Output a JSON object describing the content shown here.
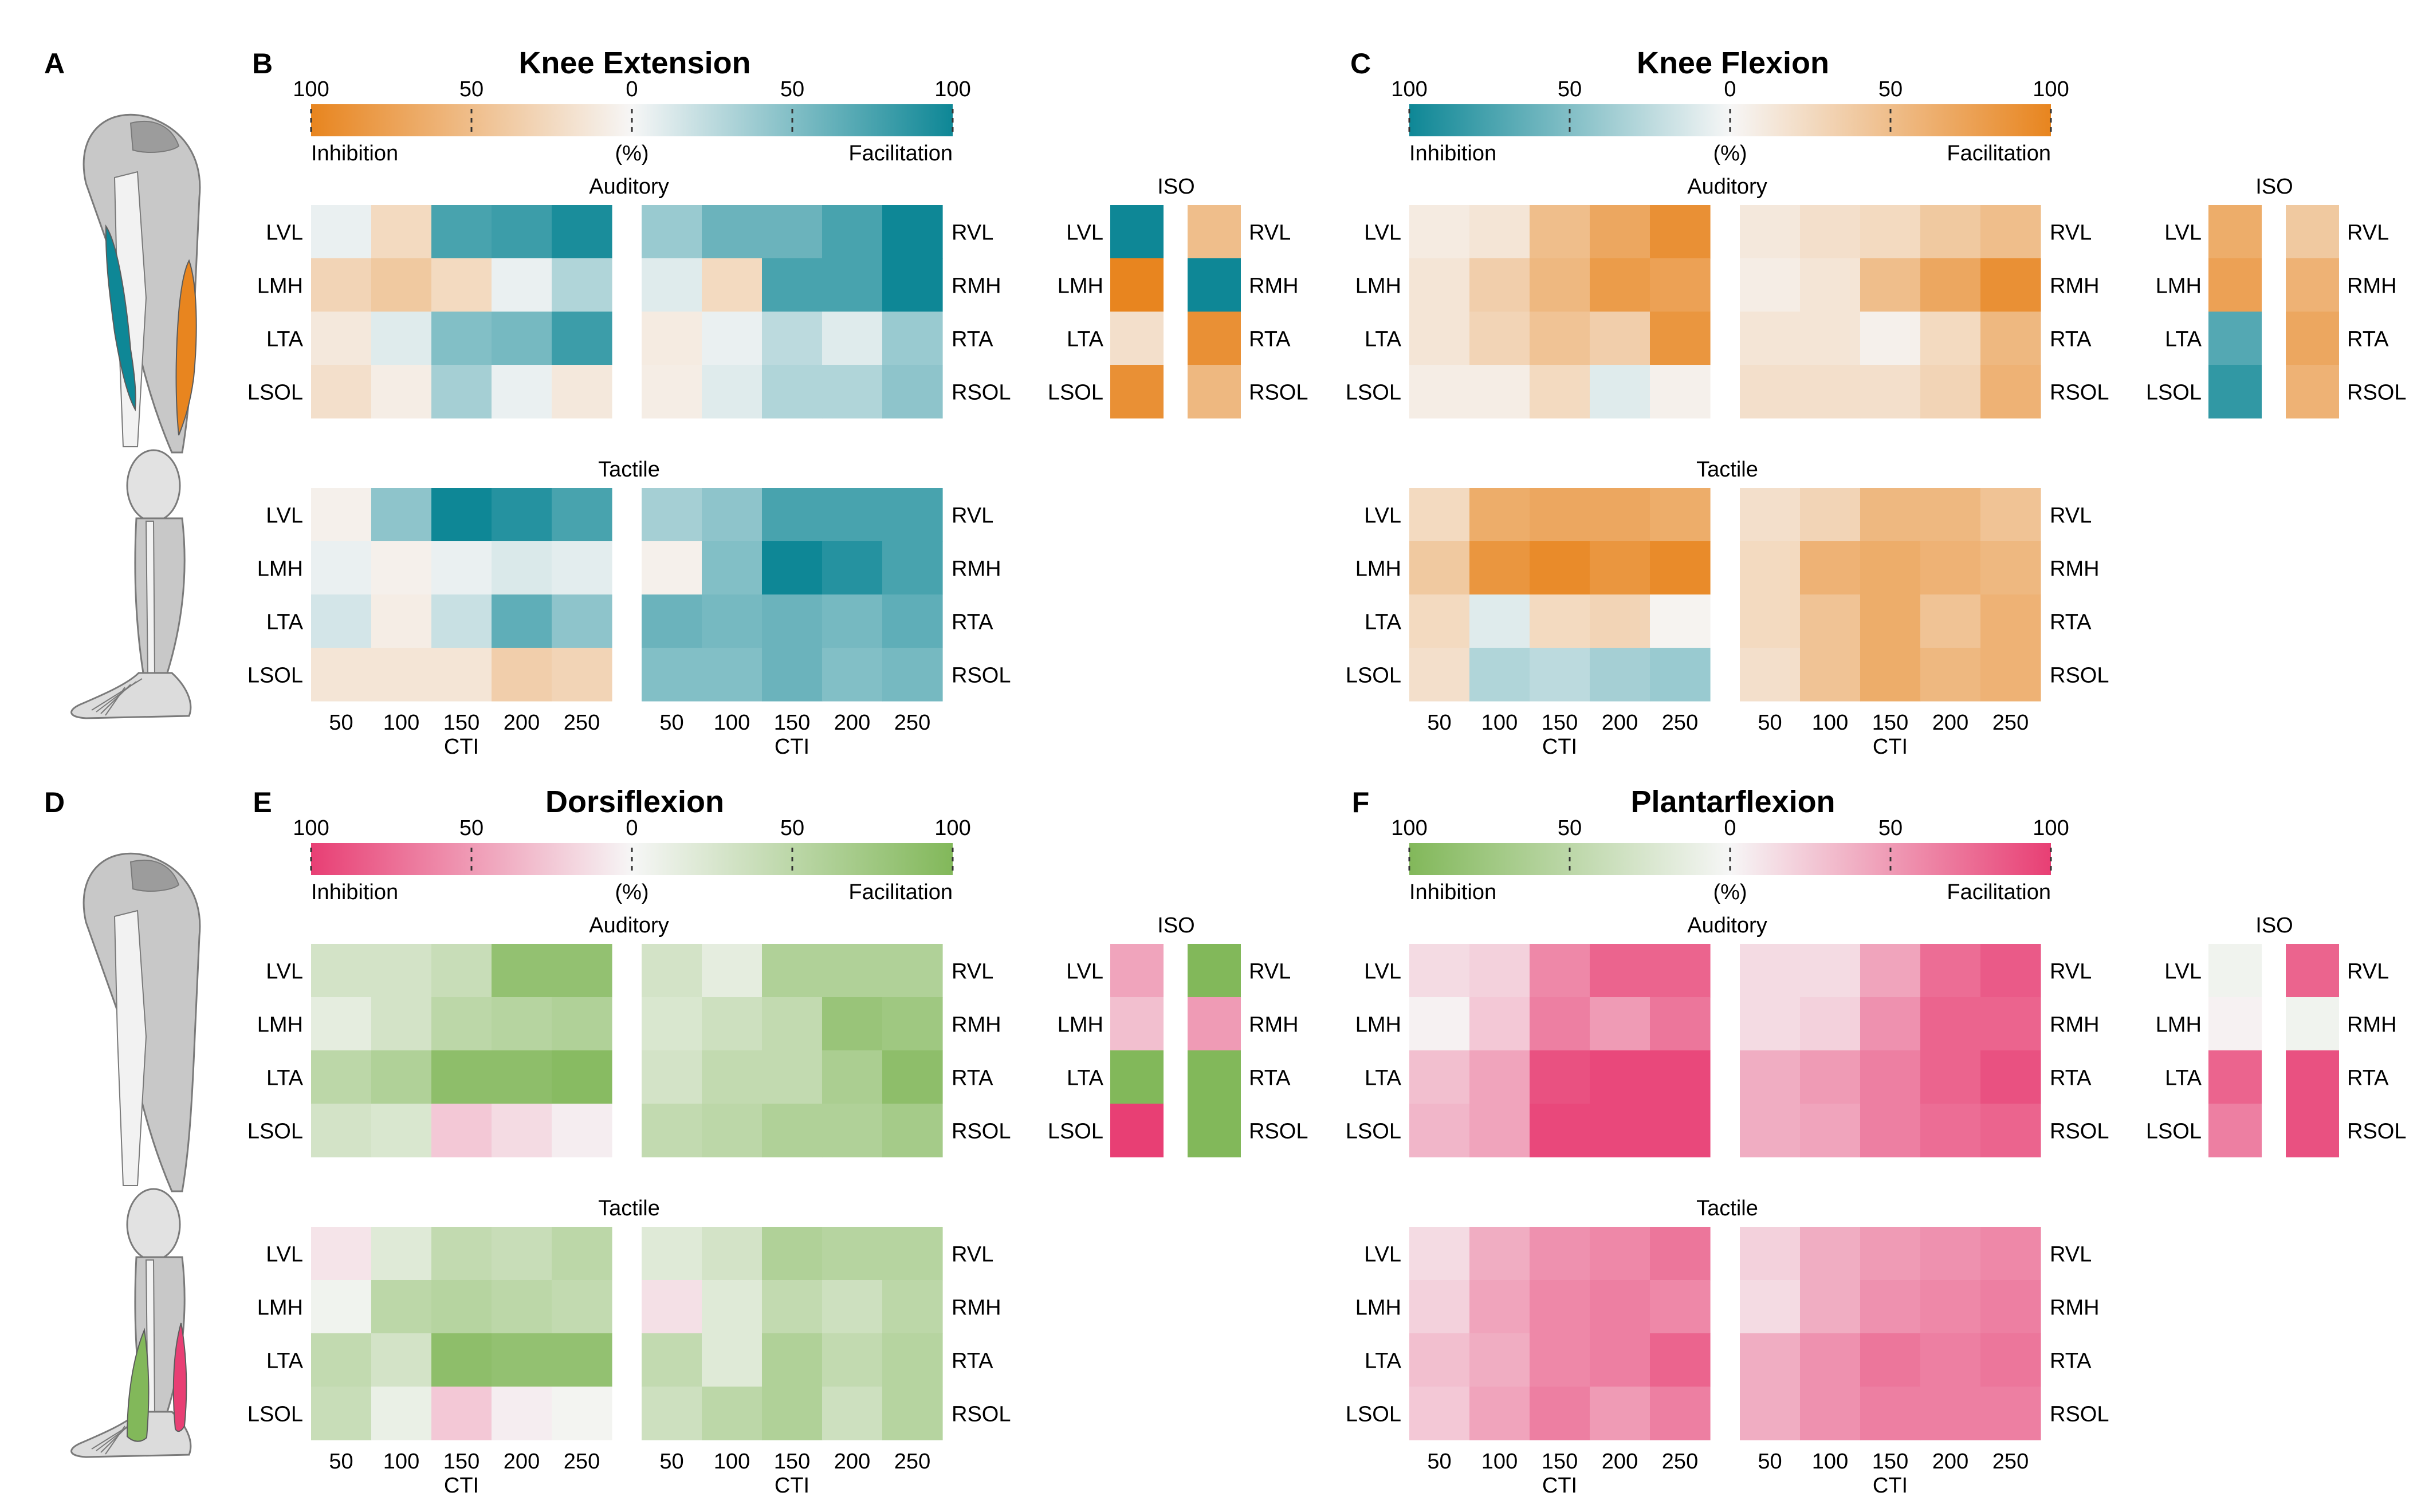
{
  "figure": {
    "panel_letters": [
      "A",
      "B",
      "C",
      "D",
      "E",
      "F"
    ],
    "cti_label": "CTI",
    "cti_ticks": [
      "50",
      "100",
      "150",
      "200",
      "250"
    ],
    "section_labels": {
      "auditory": "Auditory",
      "tactile": "Tactile",
      "iso": "ISO"
    },
    "left_muscles": [
      "LVL",
      "LMH",
      "LTA",
      "LSOL"
    ],
    "right_muscles": [
      "RVL",
      "RMH",
      "RTA",
      "RSOL"
    ]
  },
  "colors": {
    "teal": "#0e8796",
    "orange": "#e8851f",
    "green": "#82b85a",
    "pink": "#e83f74",
    "neutral": "#f6f6f6",
    "muscle": "#c8c8c8"
  },
  "chart_data": [
    {
      "type": "heatmap",
      "id": "B",
      "title": "Knee Extension",
      "colorbar": {
        "ticks": [
          "100",
          "50",
          "0",
          "50",
          "100"
        ],
        "left_label": "Inhibition",
        "center_label": "(%)",
        "right_label": "Facilitation",
        "left_color": "orange",
        "right_color": "teal",
        "range": [
          -100,
          100
        ]
      },
      "value_note": "percent change; negative = inhibition, positive = facilitation",
      "auditory_left": [
        [
          5,
          -25,
          75,
          80,
          95
        ],
        [
          -30,
          -40,
          -25,
          5,
          30
        ],
        [
          -12,
          10,
          50,
          55,
          80
        ],
        [
          -20,
          -8,
          35,
          5,
          -12
        ]
      ],
      "auditory_right": [
        [
          40,
          60,
          60,
          75,
          100
        ],
        [
          10,
          -25,
          75,
          75,
          100
        ],
        [
          -10,
          5,
          25,
          10,
          40
        ],
        [
          -8,
          10,
          30,
          30,
          45
        ]
      ],
      "tactile_left": [
        [
          -5,
          45,
          100,
          90,
          75
        ],
        [
          5,
          -5,
          5,
          12,
          8
        ],
        [
          15,
          -8,
          20,
          65,
          45
        ],
        [
          -15,
          -15,
          -15,
          -35,
          -30
        ]
      ],
      "tactile_right": [
        [
          35,
          45,
          75,
          75,
          75
        ],
        [
          -5,
          50,
          100,
          90,
          75
        ],
        [
          60,
          55,
          60,
          55,
          65
        ],
        [
          50,
          50,
          60,
          50,
          55
        ]
      ],
      "iso_left": [
        100,
        -100,
        -20,
        -90
      ],
      "iso_right": [
        -50,
        100,
        -90,
        -55
      ]
    },
    {
      "type": "heatmap",
      "id": "C",
      "title": "Knee Flexion",
      "colorbar": {
        "ticks": [
          "100",
          "50",
          "0",
          "50",
          "100"
        ],
        "left_label": "Inhibition",
        "center_label": "(%)",
        "right_label": "Facilitation",
        "left_color": "teal",
        "right_color": "orange",
        "range": [
          -100,
          100
        ]
      },
      "value_note": "percent change; negative = inhibition, positive = facilitation",
      "auditory_left": [
        [
          10,
          15,
          50,
          70,
          90
        ],
        [
          15,
          35,
          55,
          80,
          75
        ],
        [
          15,
          30,
          45,
          35,
          85
        ],
        [
          8,
          8,
          25,
          -10,
          5
        ]
      ],
      "auditory_right": [
        [
          12,
          20,
          25,
          40,
          50
        ],
        [
          8,
          15,
          50,
          70,
          90
        ],
        [
          15,
          15,
          5,
          25,
          55
        ],
        [
          20,
          20,
          20,
          30,
          60
        ]
      ],
      "tactile_left": [
        [
          25,
          65,
          70,
          70,
          65
        ],
        [
          40,
          85,
          95,
          85,
          95
        ],
        [
          25,
          -10,
          25,
          30,
          3
        ],
        [
          20,
          -30,
          -25,
          -35,
          -40
        ]
      ],
      "tactile_right": [
        [
          20,
          30,
          55,
          55,
          45
        ],
        [
          25,
          60,
          65,
          60,
          55
        ],
        [
          25,
          45,
          65,
          45,
          60
        ],
        [
          20,
          45,
          65,
          55,
          60
        ]
      ],
      "iso_left": [
        65,
        75,
        -70,
        -85
      ],
      "iso_right": [
        40,
        60,
        70,
        60
      ]
    },
    {
      "type": "heatmap",
      "id": "E",
      "title": "Dorsiflexion",
      "colorbar": {
        "ticks": [
          "100",
          "50",
          "0",
          "50",
          "100"
        ],
        "left_label": "Inhibition",
        "center_label": "(%)",
        "right_label": "Facilitation",
        "left_color": "pink",
        "right_color": "green",
        "range": [
          -100,
          100
        ]
      },
      "value_note": "percent change; negative = inhibition, positive = facilitation",
      "auditory_left": [
        [
          30,
          30,
          40,
          85,
          85
        ],
        [
          15,
          30,
          50,
          55,
          60
        ],
        [
          50,
          60,
          90,
          90,
          95
        ],
        [
          30,
          25,
          -25,
          -15,
          -5
        ]
      ],
      "auditory_right": [
        [
          30,
          15,
          60,
          60,
          60
        ],
        [
          25,
          35,
          45,
          80,
          75
        ],
        [
          30,
          45,
          45,
          65,
          90
        ],
        [
          45,
          50,
          60,
          60,
          70
        ]
      ],
      "tactile_left": [
        [
          -10,
          20,
          45,
          40,
          50
        ],
        [
          5,
          50,
          55,
          50,
          45
        ],
        [
          45,
          30,
          90,
          85,
          85
        ],
        [
          40,
          10,
          -25,
          -5,
          3
        ]
      ],
      "tactile_right": [
        [
          20,
          30,
          60,
          55,
          55
        ],
        [
          -12,
          20,
          45,
          35,
          50
        ],
        [
          45,
          20,
          60,
          45,
          55
        ],
        [
          35,
          50,
          60,
          35,
          55
        ]
      ],
      "iso_left": [
        -45,
        -30,
        100,
        -100
      ],
      "iso_right": [
        100,
        -50,
        100,
        100
      ]
    },
    {
      "type": "heatmap",
      "id": "F",
      "title": "Plantarflexion",
      "colorbar": {
        "ticks": [
          "100",
          "50",
          "0",
          "50",
          "100"
        ],
        "left_label": "Inhibition",
        "center_label": "(%)",
        "right_label": "Facilitation",
        "left_color": "green",
        "right_color": "pink",
        "range": [
          -100,
          100
        ]
      },
      "value_note": "percent change; negative = inhibition, positive = facilitation",
      "auditory_left": [
        [
          15,
          20,
          60,
          80,
          80
        ],
        [
          3,
          25,
          65,
          50,
          70
        ],
        [
          30,
          45,
          90,
          95,
          95
        ],
        [
          35,
          45,
          95,
          95,
          95
        ]
      ],
      "auditory_right": [
        [
          15,
          15,
          45,
          75,
          85
        ],
        [
          15,
          20,
          55,
          80,
          80
        ],
        [
          40,
          50,
          65,
          80,
          90
        ],
        [
          40,
          45,
          65,
          75,
          80
        ]
      ],
      "tactile_left": [
        [
          15,
          40,
          55,
          60,
          70
        ],
        [
          20,
          45,
          60,
          65,
          60
        ],
        [
          30,
          40,
          60,
          65,
          80
        ],
        [
          25,
          45,
          65,
          50,
          65
        ]
      ],
      "tactile_right": [
        [
          20,
          40,
          50,
          55,
          60
        ],
        [
          15,
          40,
          55,
          60,
          65
        ],
        [
          40,
          55,
          70,
          65,
          70
        ],
        [
          40,
          55,
          65,
          65,
          65
        ]
      ],
      "iso_left": [
        -5,
        3,
        80,
        65
      ],
      "iso_right": [
        80,
        -5,
        90,
        90
      ]
    }
  ]
}
